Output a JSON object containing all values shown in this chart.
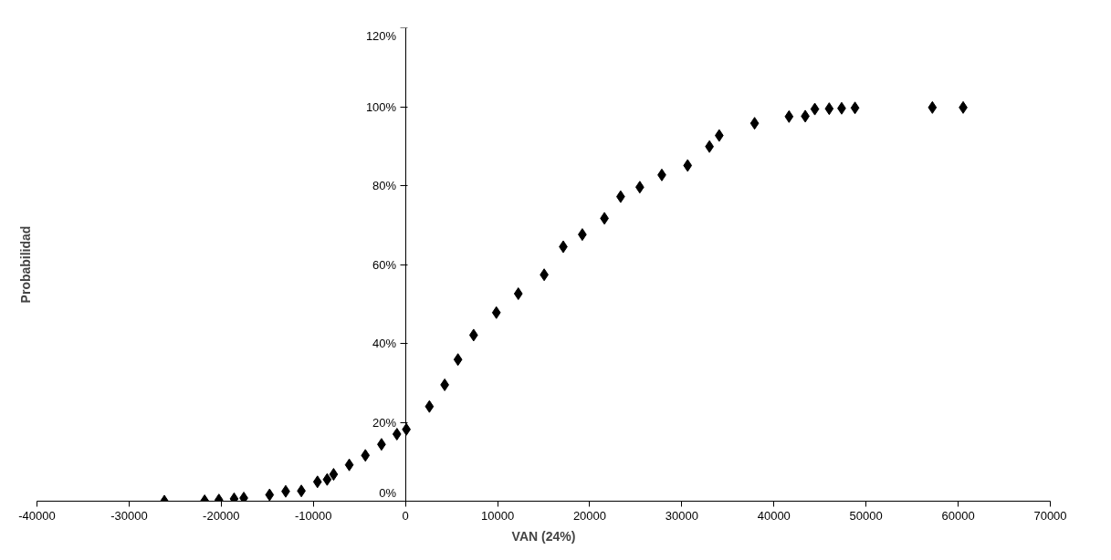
{
  "chart_data": {
    "type": "scatter",
    "xlabel": "VAN (24%)",
    "ylabel": "Probabilidad",
    "x": [
      -26170,
      -21800,
      -20250,
      -18600,
      -17550,
      -14750,
      -13000,
      -11300,
      -9550,
      -8500,
      -7800,
      -6100,
      -4350,
      -2600,
      -930,
      100,
      2600,
      4260,
      5700,
      7400,
      9870,
      12250,
      15060,
      17130,
      19200,
      21600,
      23360,
      25440,
      27830,
      30630,
      33000,
      34060,
      37900,
      41640,
      43400,
      44440,
      46000,
      47350,
      48800,
      57200,
      60540
    ],
    "series": [
      {
        "color": "#000000",
        "values": [
          0,
          0.1,
          0.3,
          0.6,
          0.8,
          1.6,
          2.5,
          2.6,
          4.9,
          5.5,
          6.8,
          9.2,
          11.6,
          14.4,
          17,
          18.2,
          24,
          29.5,
          35.9,
          42.1,
          47.8,
          52.6,
          57.4,
          64.5,
          67.6,
          71.7,
          77.2,
          79.6,
          82.7,
          85.1,
          89.9,
          92.7,
          95.8,
          97.5,
          97.6,
          99.4,
          99.5,
          99.6,
          99.7,
          99.8,
          99.8
        ]
      }
    ],
    "marker": "diamond",
    "grid": false,
    "xlim": [
      -40000,
      70000
    ],
    "ylim": [
      0,
      120
    ],
    "xticks": [
      {
        "value": -40000,
        "label": "-40000"
      },
      {
        "value": -30000,
        "label": "-30000"
      },
      {
        "value": -20000,
        "label": "-20000"
      },
      {
        "value": -10000,
        "label": "-10000"
      },
      0,
      10000,
      20000,
      30000,
      40000,
      50000,
      60000,
      70000
    ],
    "yticks": [
      {
        "value": 0,
        "label": "0%"
      },
      {
        "value": 20,
        "label": "20%"
      },
      {
        "value": 40,
        "label": "40%"
      },
      {
        "value": 60,
        "label": "60%"
      },
      {
        "value": 80,
        "label": "80%"
      },
      {
        "value": 100,
        "label": "100%"
      },
      {
        "value": 120,
        "label": "120%"
      }
    ]
  }
}
